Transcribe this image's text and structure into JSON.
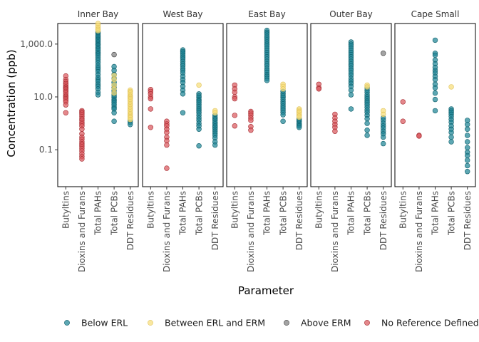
{
  "chart_data": {
    "type": "scatter",
    "title": "",
    "xlabel": "Parameter",
    "ylabel": "Concentration (ppb)",
    "y_scale": "log10",
    "ylim": [
      0.004,
      6000
    ],
    "y_ticks": [
      {
        "value": 0.1,
        "label": "0.1"
      },
      {
        "value": 10,
        "label": "10.0"
      },
      {
        "value": 1000,
        "label": "1,000.0"
      }
    ],
    "categories": [
      "Butyltins",
      "Dioxins and Furans",
      "Total PAHs",
      "Total PCBs",
      "DDT Residues"
    ],
    "facets": [
      "Inner Bay",
      "West Bay",
      "East Bay",
      "Outer Bay",
      "Cape Small"
    ],
    "legend_position": "bottom",
    "series": [
      {
        "name": "Below ERL",
        "color": "#1f8596",
        "stroke": "#0e5f6b"
      },
      {
        "name": "Between ERL and ERM",
        "color": "#f7de7a",
        "stroke": "#e0c25a"
      },
      {
        "name": "Above ERM",
        "color": "#808080",
        "stroke": "#3a3a3a"
      },
      {
        "name": "No Reference Defined",
        "color": "#d9595e",
        "stroke": "#a52a2f"
      }
    ],
    "points": {
      "Inner Bay": {
        "Butyltins": {
          "No Reference Defined": [
            62,
            45,
            38,
            32,
            28,
            24,
            22,
            20,
            18,
            16,
            14,
            12,
            10.5,
            9.5,
            8.5,
            7.5,
            6.5,
            5,
            2.5
          ]
        },
        "Dioxins and Furans": {
          "No Reference Defined": [
            3,
            2.7,
            2.4,
            2.1,
            1.8,
            1.5,
            1.3,
            1.1,
            0.95,
            0.8,
            0.6,
            0.4,
            0.3,
            0.25,
            0.2,
            0.17,
            0.15,
            0.13,
            0.11,
            0.09,
            0.07,
            0.055,
            0.045
          ]
        },
        "Total PAHs": {
          "Between ERL and ERM": [
            6000,
            5000,
            4200,
            3600,
            3200
          ],
          "Below ERL": [
            3000,
            2700,
            2400,
            2100,
            1900,
            1700,
            1500,
            1350,
            1200,
            1050,
            950,
            850,
            750,
            650,
            560,
            480,
            420,
            360,
            300,
            250,
            200,
            160,
            130,
            110,
            90,
            70,
            55,
            45,
            38,
            30,
            25,
            20,
            15,
            12
          ]
        },
        "Total PCBs": {
          "Above ERM": [
            400
          ],
          "Between ERL and ERM": [
            65,
            45,
            28,
            20,
            14
          ],
          "Below ERL": [
            140,
            100,
            70,
            50,
            35,
            28,
            22,
            18,
            15,
            13,
            11,
            9.5,
            8,
            7,
            6,
            5,
            4,
            3.5,
            2.5,
            1.2
          ]
        },
        "DDT Residues": {
          "Between ERL and ERM": [
            18,
            16,
            14,
            12,
            10.5,
            9.5,
            8.5,
            7.5,
            6.5,
            5.5,
            4.8,
            4.2,
            3.6,
            3.1,
            2.7,
            2.3,
            2.0,
            1.8,
            1.6,
            1.4
          ],
          "Below ERL": [
            1.3,
            1.1,
            0.9
          ]
        }
      },
      "West Bay": {
        "Butyltins": {
          "No Reference Defined": [
            19,
            16,
            13,
            10,
            8.5,
            3.5,
            0.7
          ]
        },
        "Dioxins and Furans": {
          "No Reference Defined": [
            1.2,
            0.95,
            0.8,
            0.6,
            0.45,
            0.3,
            0.22,
            0.15,
            0.02
          ]
        },
        "Total PAHs": {
          "Below ERL": [
            600,
            520,
            450,
            380,
            320,
            270,
            220,
            180,
            150,
            120,
            100,
            80,
            60,
            45,
            35,
            25,
            18,
            13,
            2.5
          ]
        },
        "Total PCBs": {
          "Between ERL and ERM": [
            28
          ],
          "Below ERL": [
            13,
            11,
            9.5,
            8,
            7,
            6,
            5,
            4.2,
            3.5,
            3,
            2.5,
            2,
            1.6,
            1.3,
            1.0,
            0.8,
            0.6,
            0.14
          ]
        },
        "DDT Residues": {
          "Between ERL and ERM": [
            3,
            2.5
          ],
          "Below ERL": [
            2.0,
            1.7,
            1.5,
            1.3,
            1.1,
            0.95,
            0.8,
            0.7,
            0.6,
            0.5,
            0.42,
            0.35,
            0.28,
            0.2,
            0.15
          ]
        }
      },
      "East Bay": {
        "Butyltins": {
          "No Reference Defined": [
            28,
            20,
            15,
            10,
            8.5,
            2,
            0.8
          ]
        },
        "Dioxins and Furans": {
          "No Reference Defined": [
            2.8,
            2.4,
            2.0,
            1.6,
            1.3,
            0.75,
            0.55
          ]
        },
        "Total PAHs": {
          "Below ERL": [
            3300,
            2800,
            2400,
            2000,
            1700,
            1450,
            1200,
            1000,
            850,
            700,
            580,
            480,
            400,
            330,
            270,
            220,
            180,
            150,
            120,
            100,
            85,
            70,
            60,
            50,
            42
          ]
        },
        "Total PCBs": {
          "Between ERL and ERM": [
            30,
            25,
            20
          ],
          "Below ERL": [
            16,
            13,
            11,
            9.5,
            8,
            6.5,
            5.5,
            4.5,
            3.8,
            3.2,
            2.6,
            2.1,
            1.2
          ]
        },
        "DDT Residues": {
          "Between ERL and ERM": [
            3.5,
            3.1,
            2.8,
            2.5,
            2.2,
            1.9,
            1.7
          ],
          "Below ERL": [
            1.5,
            1.3,
            1.15,
            1.0,
            0.9,
            0.8,
            0.7
          ]
        }
      },
      "Outer Bay": {
        "Butyltins": {
          "No Reference Defined": [
            30,
            22,
            20
          ]
        },
        "Dioxins and Furans": {
          "No Reference Defined": [
            2.2,
            1.6,
            1.2,
            0.9,
            0.7,
            0.5
          ]
        },
        "Total PAHs": {
          "Below ERL": [
            1200,
            1000,
            850,
            700,
            580,
            480,
            400,
            330,
            270,
            220,
            180,
            150,
            120,
            100,
            80,
            65,
            50,
            40,
            32,
            25,
            18,
            12,
            3.5
          ]
        },
        "Total PCBs": {
          "Between ERL and ERM": [
            28,
            24
          ],
          "Below ERL": [
            22,
            18,
            15,
            12,
            10,
            8.5,
            7,
            6,
            5,
            4,
            3.2,
            2.6,
            2.0,
            1.5,
            1.0,
            0.55,
            0.35
          ]
        },
        "DDT Residues": {
          "Above ERM": [
            450
          ],
          "Between ERL and ERM": [
            3,
            2.2
          ],
          "Below ERL": [
            1.6,
            1.3,
            1.0,
            0.8,
            0.65,
            0.5,
            0.4,
            0.3,
            0.17
          ]
        }
      },
      "Cape Small": {
        "Butyltins": {
          "No Reference Defined": [
            6.5,
            1.2
          ]
        },
        "Dioxins and Furans": {
          "No Reference Defined": [
            0.35,
            0.33
          ]
        },
        "Total PAHs": {
          "Below ERL": [
            1400,
            450,
            380,
            250,
            180,
            130,
            100,
            80,
            60,
            45,
            30,
            22,
            14,
            8,
            3
          ]
        },
        "Total PCBs": {
          "Between ERL and ERM": [
            24
          ],
          "Below ERL": [
            3.5,
            3.0,
            2.6,
            2.2,
            1.8,
            1.4,
            1.1,
            0.8,
            0.6,
            0.45,
            0.3,
            0.2
          ]
        },
        "DDT Residues": {
          "Below ERL": [
            1.3,
            0.9,
            0.6,
            0.35,
            0.2,
            0.12,
            0.08,
            0.06,
            0.04,
            0.025,
            0.015
          ]
        }
      }
    }
  }
}
